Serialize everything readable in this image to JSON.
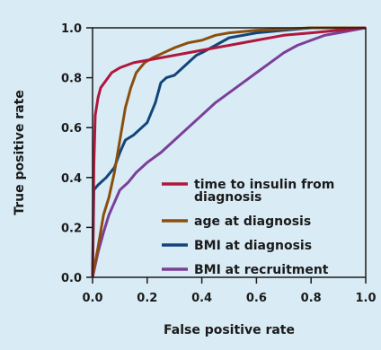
{
  "chart_data": {
    "type": "line",
    "xlabel": "False positive rate",
    "ylabel": "True positive rate",
    "xlim": [
      0,
      1
    ],
    "ylim": [
      0,
      1
    ],
    "x_ticks": [
      "0.0",
      "0.2",
      "0.4",
      "0.6",
      "0.8",
      "1.0"
    ],
    "y_ticks": [
      "0.0",
      "0.2",
      "0.4",
      "0.6",
      "0.8",
      "1.0"
    ],
    "grid": false,
    "legend_position": "bottom-right",
    "series": [
      {
        "name": "time to insulin from diagnosis",
        "label_lines": [
          "time to insulin from",
          "diagnosis"
        ],
        "color": "#b0173c",
        "points": [
          [
            0,
            0
          ],
          [
            0.005,
            0.45
          ],
          [
            0.01,
            0.65
          ],
          [
            0.02,
            0.72
          ],
          [
            0.03,
            0.76
          ],
          [
            0.05,
            0.79
          ],
          [
            0.07,
            0.82
          ],
          [
            0.1,
            0.84
          ],
          [
            0.15,
            0.86
          ],
          [
            0.2,
            0.87
          ],
          [
            0.3,
            0.89
          ],
          [
            0.4,
            0.91
          ],
          [
            0.5,
            0.93
          ],
          [
            0.6,
            0.95
          ],
          [
            0.7,
            0.97
          ],
          [
            0.8,
            0.98
          ],
          [
            0.9,
            0.99
          ],
          [
            1,
            1
          ]
        ]
      },
      {
        "name": "age at diagnosis",
        "label_lines": [
          "age at diagnosis"
        ],
        "color": "#8a4f0f",
        "points": [
          [
            0,
            0
          ],
          [
            0.02,
            0.12
          ],
          [
            0.04,
            0.25
          ],
          [
            0.06,
            0.32
          ],
          [
            0.08,
            0.42
          ],
          [
            0.1,
            0.55
          ],
          [
            0.12,
            0.68
          ],
          [
            0.14,
            0.76
          ],
          [
            0.16,
            0.82
          ],
          [
            0.19,
            0.86
          ],
          [
            0.22,
            0.88
          ],
          [
            0.26,
            0.9
          ],
          [
            0.3,
            0.92
          ],
          [
            0.35,
            0.94
          ],
          [
            0.4,
            0.95
          ],
          [
            0.45,
            0.97
          ],
          [
            0.5,
            0.98
          ],
          [
            0.6,
            0.99
          ],
          [
            0.7,
            0.995
          ],
          [
            0.8,
            1
          ],
          [
            1,
            1
          ]
        ]
      },
      {
        "name": "BMI at diagnosis",
        "label_lines": [
          "BMI at diagnosis"
        ],
        "color": "#12457a",
        "points": [
          [
            0,
            0
          ],
          [
            0.005,
            0.35
          ],
          [
            0.02,
            0.37
          ],
          [
            0.05,
            0.4
          ],
          [
            0.08,
            0.44
          ],
          [
            0.1,
            0.5
          ],
          [
            0.12,
            0.55
          ],
          [
            0.15,
            0.57
          ],
          [
            0.18,
            0.6
          ],
          [
            0.2,
            0.62
          ],
          [
            0.23,
            0.7
          ],
          [
            0.25,
            0.78
          ],
          [
            0.27,
            0.8
          ],
          [
            0.3,
            0.81
          ],
          [
            0.33,
            0.84
          ],
          [
            0.36,
            0.87
          ],
          [
            0.38,
            0.89
          ],
          [
            0.4,
            0.9
          ],
          [
            0.45,
            0.93
          ],
          [
            0.5,
            0.96
          ],
          [
            0.6,
            0.98
          ],
          [
            0.7,
            0.99
          ],
          [
            0.8,
            1
          ],
          [
            1,
            1
          ]
        ]
      },
      {
        "name": "BMI at recruitment",
        "label_lines": [
          "BMI at recruitment"
        ],
        "color": "#7a3f9a",
        "points": [
          [
            0,
            0
          ],
          [
            0.02,
            0.1
          ],
          [
            0.04,
            0.18
          ],
          [
            0.06,
            0.25
          ],
          [
            0.08,
            0.3
          ],
          [
            0.1,
            0.35
          ],
          [
            0.13,
            0.38
          ],
          [
            0.16,
            0.42
          ],
          [
            0.2,
            0.46
          ],
          [
            0.25,
            0.5
          ],
          [
            0.3,
            0.55
          ],
          [
            0.35,
            0.6
          ],
          [
            0.4,
            0.65
          ],
          [
            0.45,
            0.7
          ],
          [
            0.5,
            0.74
          ],
          [
            0.55,
            0.78
          ],
          [
            0.6,
            0.82
          ],
          [
            0.65,
            0.86
          ],
          [
            0.7,
            0.9
          ],
          [
            0.75,
            0.93
          ],
          [
            0.8,
            0.95
          ],
          [
            0.85,
            0.97
          ],
          [
            0.9,
            0.98
          ],
          [
            0.95,
            0.99
          ],
          [
            1,
            1
          ]
        ]
      }
    ]
  }
}
